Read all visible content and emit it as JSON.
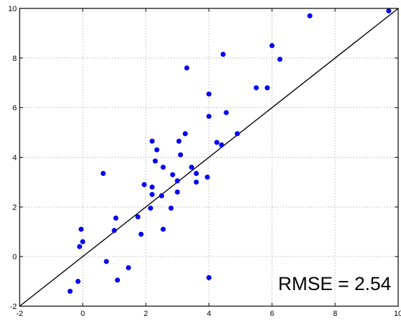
{
  "chart_data": {
    "type": "scatter",
    "title": "",
    "xlabel": "",
    "ylabel": "",
    "xlim": [
      -2,
      10
    ],
    "ylim": [
      -2,
      10
    ],
    "x_ticks": [
      "-2",
      "0",
      "2",
      "4",
      "6",
      "8",
      "10"
    ],
    "y_ticks": [
      "-2",
      "0",
      "2",
      "4",
      "6",
      "8",
      "10"
    ],
    "grid": true,
    "annotation": "RMSE = 2.54",
    "reference_line": {
      "x": [
        -2,
        10
      ],
      "y": [
        -2,
        10
      ]
    },
    "series": [
      {
        "x": [
          9.7,
          7.2,
          6.0,
          6.25,
          4.45,
          3.3,
          5.5,
          5.85,
          4.0,
          4.0,
          4.55,
          4.9,
          4.25,
          4.4,
          2.2,
          3.25,
          2.35,
          3.05,
          3.1,
          2.3,
          2.55,
          3.45,
          2.85,
          3.6,
          3.95,
          3.0,
          1.95,
          2.2,
          3.6,
          0.65,
          2.2,
          2.5,
          3.0,
          2.15,
          2.8,
          1.75,
          1.05,
          2.55,
          1.0,
          1.85,
          -0.05,
          0.0,
          -0.1,
          0.75,
          1.45,
          1.1,
          -0.15,
          -0.4,
          4.0
        ],
        "y": [
          9.9,
          9.7,
          8.5,
          7.95,
          8.15,
          7.6,
          6.8,
          6.8,
          6.55,
          5.65,
          5.8,
          4.95,
          4.6,
          4.5,
          4.65,
          4.95,
          4.3,
          4.65,
          4.1,
          3.85,
          3.6,
          3.6,
          3.3,
          3.35,
          3.2,
          3.05,
          2.9,
          2.8,
          3.0,
          3.35,
          2.5,
          2.45,
          2.6,
          1.95,
          1.95,
          1.6,
          1.55,
          1.1,
          1.05,
          0.9,
          1.1,
          0.6,
          0.4,
          -0.2,
          -0.45,
          -0.95,
          -1.0,
          -1.4,
          -0.85
        ]
      }
    ],
    "colors": {
      "points": "#0000ee",
      "line": "#000000",
      "grid": "#999999",
      "axes": "#000000"
    }
  }
}
